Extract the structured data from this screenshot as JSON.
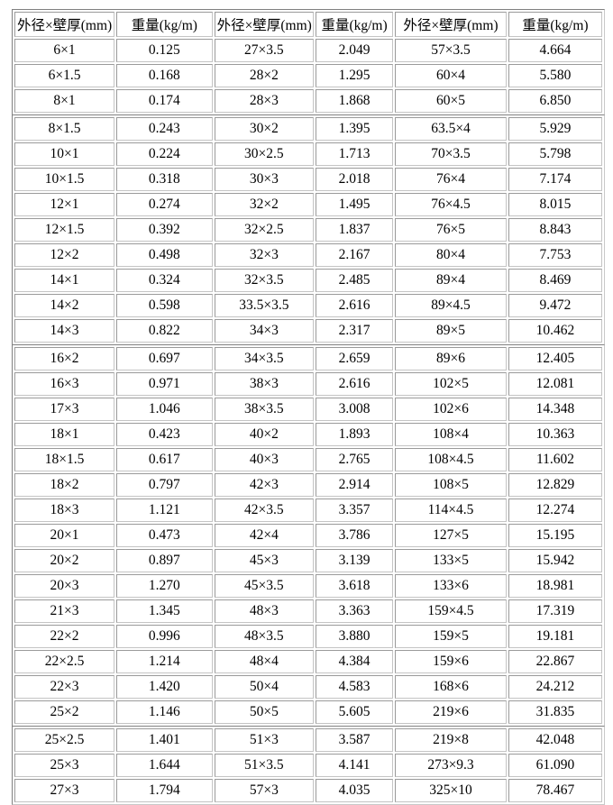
{
  "page": {
    "background": "#ffffff",
    "text_color": "#000000",
    "border_color": "#9a9a9a",
    "outer_border_color": "#808080"
  },
  "table": {
    "headers": [
      "外径×壁厚(mm)",
      "重量(kg/m)",
      "外径×壁厚(mm)",
      "重量(kg/m)",
      "外径×壁厚(mm)",
      "重量(kg/m)"
    ],
    "rows": [
      [
        "6×1",
        "0.125",
        "27×3.5",
        "2.049",
        "57×3.5",
        "4.664"
      ],
      [
        "6×1.5",
        "0.168",
        "28×2",
        "1.295",
        "60×4",
        "5.580"
      ],
      [
        "8×1",
        "0.174",
        "28×3",
        "1.868",
        "60×5",
        "6.850"
      ],
      [
        "8×1.5",
        "0.243",
        "30×2",
        "1.395",
        "63.5×4",
        "5.929"
      ],
      [
        "10×1",
        "0.224",
        "30×2.5",
        "1.713",
        "70×3.5",
        "5.798"
      ],
      [
        "10×1.5",
        "0.318",
        "30×3",
        "2.018",
        "76×4",
        "7.174"
      ],
      [
        "12×1",
        "0.274",
        "32×2",
        "1.495",
        "76×4.5",
        "8.015"
      ],
      [
        "12×1.5",
        "0.392",
        "32×2.5",
        "1.837",
        "76×5",
        "8.843"
      ],
      [
        "12×2",
        "0.498",
        "32×3",
        "2.167",
        "80×4",
        "7.753"
      ],
      [
        "14×1",
        "0.324",
        "32×3.5",
        "2.485",
        "89×4",
        "8.469"
      ],
      [
        "14×2",
        "0.598",
        "33.5×3.5",
        "2.616",
        "89×4.5",
        "9.472"
      ],
      [
        "14×3",
        "0.822",
        "34×3",
        "2.317",
        "89×5",
        "10.462"
      ],
      [
        "16×2",
        "0.697",
        "34×3.5",
        "2.659",
        "89×6",
        "12.405"
      ],
      [
        "16×3",
        "0.971",
        "38×3",
        "2.616",
        "102×5",
        "12.081"
      ],
      [
        "17×3",
        "1.046",
        "38×3.5",
        "3.008",
        "102×6",
        "14.348"
      ],
      [
        "18×1",
        "0.423",
        "40×2",
        "1.893",
        "108×4",
        "10.363"
      ],
      [
        "18×1.5",
        "0.617",
        "40×3",
        "2.765",
        "108×4.5",
        "11.602"
      ],
      [
        "18×2",
        "0.797",
        "42×3",
        "2.914",
        "108×5",
        "12.829"
      ],
      [
        "18×3",
        "1.121",
        "42×3.5",
        "3.357",
        "114×4.5",
        "12.274"
      ],
      [
        "20×1",
        "0.473",
        "42×4",
        "3.786",
        "127×5",
        "15.195"
      ],
      [
        "20×2",
        "0.897",
        "45×3",
        "3.139",
        "133×5",
        "15.942"
      ],
      [
        "20×3",
        "1.270",
        "45×3.5",
        "3.618",
        "133×6",
        "18.981"
      ],
      [
        "21×3",
        "1.345",
        "48×3",
        "3.363",
        "159×4.5",
        "17.319"
      ],
      [
        "22×2",
        "0.996",
        "48×3.5",
        "3.880",
        "159×5",
        "19.181"
      ],
      [
        "22×2.5",
        "1.214",
        "48×4",
        "4.384",
        "159×6",
        "22.867"
      ],
      [
        "22×3",
        "1.420",
        "50×4",
        "4.583",
        "168×6",
        "24.212"
      ],
      [
        "25×2",
        "1.146",
        "50×5",
        "5.605",
        "219×6",
        "31.835"
      ],
      [
        "25×2.5",
        "1.401",
        "51×3",
        "3.587",
        "219×8",
        "42.048"
      ],
      [
        "25×3",
        "1.644",
        "51×3.5",
        "4.141",
        "273×9.3",
        "61.090"
      ],
      [
        "27×3",
        "1.794",
        "57×3",
        "4.035",
        "325×10",
        "78.467"
      ]
    ],
    "section_row_ranges": [
      [
        0,
        3
      ],
      [
        3,
        12
      ],
      [
        12,
        27
      ],
      [
        27,
        30
      ]
    ]
  }
}
